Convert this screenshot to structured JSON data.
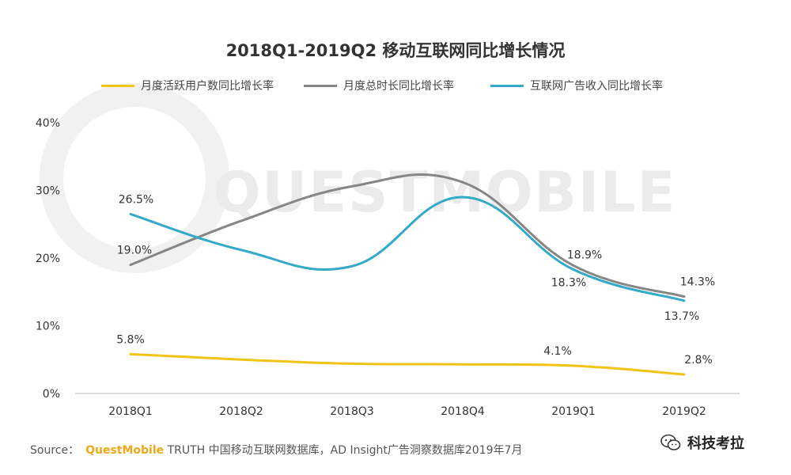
{
  "chart_data": {
    "type": "line",
    "title": "2018Q1-2019Q2 移动互联网同比增长情况",
    "categories": [
      "2018Q1",
      "2018Q2",
      "2018Q3",
      "2018Q4",
      "2019Q1",
      "2019Q2"
    ],
    "ylim": [
      0,
      40
    ],
    "yticks": [
      "0%",
      "10%",
      "20%",
      "30%",
      "40%"
    ],
    "grid": false,
    "legend_position": "top",
    "series": [
      {
        "name": "月度活跃用户数同比增长率",
        "color": "#f2c418",
        "values": [
          5.8,
          5.0,
          4.4,
          4.3,
          4.1,
          2.8
        ],
        "labels": [
          "5.8%",
          "",
          "",
          "",
          "4.1%",
          "2.8%"
        ]
      },
      {
        "name": "月度总时长同比增长率",
        "color": "#868686",
        "values": [
          19.0,
          25.5,
          30.6,
          31.2,
          18.9,
          14.3
        ],
        "labels": [
          "19.0%",
          "",
          "",
          "",
          "18.9%",
          "14.3%"
        ]
      },
      {
        "name": "互联网广告收入同比增长率",
        "color": "#35a9c8",
        "values": [
          26.5,
          21.2,
          18.8,
          29.0,
          18.3,
          13.7
        ],
        "labels": [
          "26.5%",
          "",
          "",
          "",
          "18.3%",
          "13.7%"
        ]
      }
    ]
  },
  "watermark": "QUESTMOBILE",
  "source": {
    "prefix": "Source：",
    "brand": "QuestMobile",
    "text": " TRUTH 中国移动互联网数据库，AD Insight广告洞察数据库2019年7月"
  },
  "wechat": {
    "icon": "wechat-icon",
    "name": "科技考拉"
  }
}
